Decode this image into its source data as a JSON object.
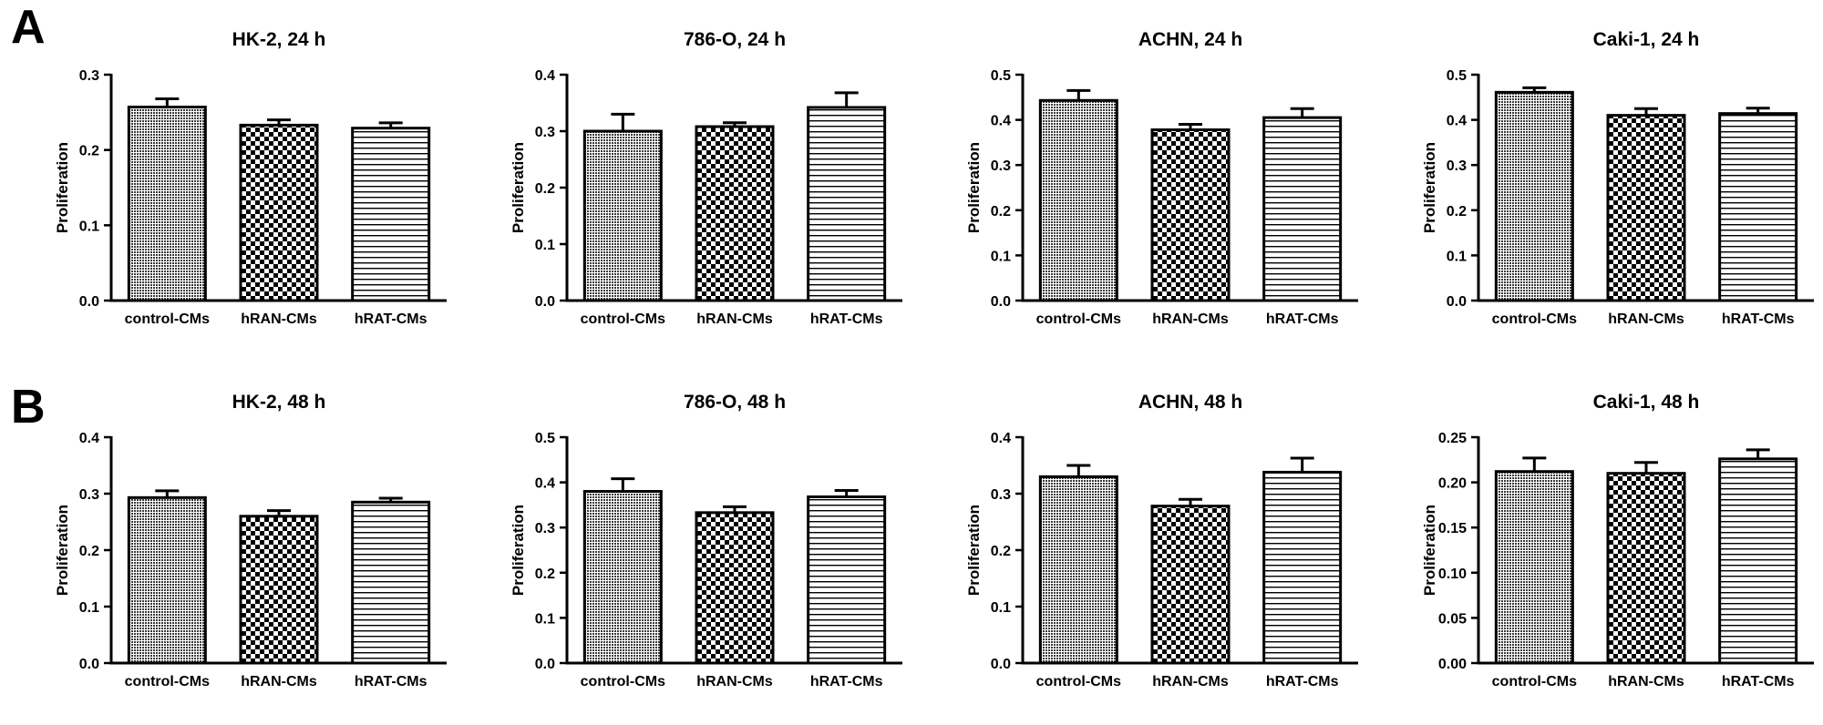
{
  "panel_labels": [
    "A",
    "B"
  ],
  "pattern_styles": [
    "dense-dots",
    "checkerboard",
    "horizontal-lines"
  ],
  "colors": {
    "ink": "#000000",
    "background": "#ffffff"
  },
  "chart_data": [
    {
      "type": "bar",
      "title": "HK-2, 24 h",
      "ylabel": "Proliferation",
      "categories": [
        "control-CMs",
        "hRAN-CMs",
        "hRAT-CMs"
      ],
      "values": [
        0.257,
        0.233,
        0.229
      ],
      "errors": [
        0.011,
        0.007,
        0.007
      ],
      "ylim": [
        0,
        0.3
      ],
      "yticks": [
        "0.0",
        "0.1",
        "0.2",
        "0.3"
      ],
      "grid": false,
      "legend": "none"
    },
    {
      "type": "bar",
      "title": "786-O, 24 h",
      "ylabel": "Proliferation",
      "categories": [
        "control-CMs",
        "hRAN-CMs",
        "hRAT-CMs"
      ],
      "values": [
        0.3,
        0.308,
        0.342
      ],
      "errors": [
        0.03,
        0.007,
        0.026
      ],
      "ylim": [
        0,
        0.4
      ],
      "yticks": [
        "0.0",
        "0.1",
        "0.2",
        "0.3",
        "0.4"
      ],
      "grid": false,
      "legend": "none"
    },
    {
      "type": "bar",
      "title": "ACHN, 24 h",
      "ylabel": "Proliferation",
      "categories": [
        "control-CMs",
        "hRAN-CMs",
        "hRAT-CMs"
      ],
      "values": [
        0.443,
        0.378,
        0.405
      ],
      "errors": [
        0.022,
        0.012,
        0.02
      ],
      "ylim": [
        0,
        0.5
      ],
      "yticks": [
        "0.0",
        "0.1",
        "0.2",
        "0.3",
        "0.4",
        "0.5"
      ],
      "grid": false,
      "legend": "none"
    },
    {
      "type": "bar",
      "title": "Caki-1, 24 h",
      "ylabel": "Proliferation",
      "categories": [
        "control-CMs",
        "hRAN-CMs",
        "hRAT-CMs"
      ],
      "values": [
        0.461,
        0.41,
        0.414
      ],
      "errors": [
        0.01,
        0.015,
        0.012
      ],
      "ylim": [
        0,
        0.5
      ],
      "yticks": [
        "0.0",
        "0.1",
        "0.2",
        "0.3",
        "0.4",
        "0.5"
      ],
      "grid": false,
      "legend": "none"
    },
    {
      "type": "bar",
      "title": "HK-2, 48 h",
      "ylabel": "Proliferation",
      "categories": [
        "control-CMs",
        "hRAN-CMs",
        "hRAT-CMs"
      ],
      "values": [
        0.293,
        0.26,
        0.285
      ],
      "errors": [
        0.012,
        0.01,
        0.007
      ],
      "ylim": [
        0,
        0.4
      ],
      "yticks": [
        "0.0",
        "0.1",
        "0.2",
        "0.3",
        "0.4"
      ],
      "grid": false,
      "legend": "none"
    },
    {
      "type": "bar",
      "title": "786-O, 48 h",
      "ylabel": "Proliferation",
      "categories": [
        "control-CMs",
        "hRAN-CMs",
        "hRAT-CMs"
      ],
      "values": [
        0.38,
        0.333,
        0.368
      ],
      "errors": [
        0.028,
        0.013,
        0.014
      ],
      "ylim": [
        0,
        0.5
      ],
      "yticks": [
        "0.0",
        "0.1",
        "0.2",
        "0.3",
        "0.4",
        "0.5"
      ],
      "grid": false,
      "legend": "none"
    },
    {
      "type": "bar",
      "title": "ACHN, 48 h",
      "ylabel": "Proliferation",
      "categories": [
        "control-CMs",
        "hRAN-CMs",
        "hRAT-CMs"
      ],
      "values": [
        0.33,
        0.278,
        0.338
      ],
      "errors": [
        0.02,
        0.012,
        0.025
      ],
      "ylim": [
        0,
        0.4
      ],
      "yticks": [
        "0.0",
        "0.1",
        "0.2",
        "0.3",
        "0.4"
      ],
      "grid": false,
      "legend": "none"
    },
    {
      "type": "bar",
      "title": "Caki-1, 48 h",
      "ylabel": "Proliferation",
      "categories": [
        "control-CMs",
        "hRAN-CMs",
        "hRAT-CMs"
      ],
      "values": [
        0.212,
        0.21,
        0.226
      ],
      "errors": [
        0.015,
        0.012,
        0.01
      ],
      "ylim": [
        0,
        0.25
      ],
      "yticks": [
        "0.00",
        "0.05",
        "0.10",
        "0.15",
        "0.20",
        "0.25"
      ],
      "grid": false,
      "legend": "none"
    }
  ]
}
